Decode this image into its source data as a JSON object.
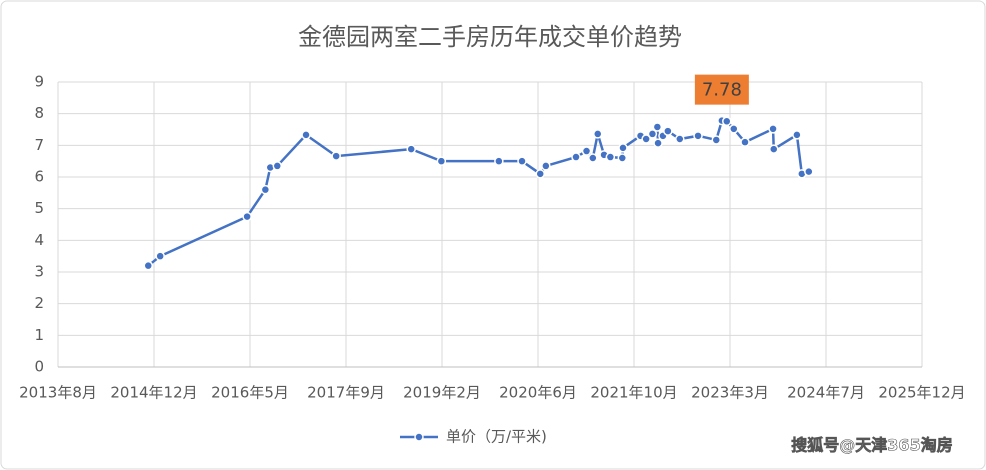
{
  "chart_data": {
    "type": "line",
    "title": "金德园两室二手房历年成交单价趋势",
    "x": [
      2014.87,
      2015.04,
      2016.28,
      2016.54,
      2016.61,
      2016.71,
      2017.12,
      2017.55,
      2018.62,
      2019.05,
      2019.87,
      2020.2,
      2020.46,
      2020.54,
      2020.97,
      2021.12,
      2021.21,
      2021.28,
      2021.37,
      2021.46,
      2021.63,
      2021.64,
      2021.89,
      2021.97,
      2022.06,
      2022.13,
      2022.14,
      2022.21,
      2022.28,
      2022.45,
      2022.71,
      2022.97,
      2023.05,
      2023.12,
      2023.22,
      2023.38,
      2023.78,
      2023.79,
      2024.12,
      2024.19,
      2024.29
    ],
    "series": [
      {
        "name": "单价（万/平米)",
        "color": "#4472c4",
        "values": [
          3.2,
          3.5,
          4.75,
          5.6,
          6.3,
          6.35,
          7.33,
          6.66,
          6.88,
          6.5,
          6.5,
          6.5,
          6.1,
          6.35,
          6.63,
          6.82,
          6.6,
          7.36,
          6.7,
          6.63,
          6.6,
          6.92,
          7.3,
          7.2,
          7.36,
          7.58,
          7.07,
          7.3,
          7.45,
          7.2,
          7.3,
          7.17,
          7.78,
          7.76,
          7.52,
          7.1,
          7.52,
          6.88,
          7.33,
          6.1,
          6.17
        ]
      }
    ],
    "highlight_index": 32,
    "highlight_color": "#ed7d31",
    "xlim": [
      2013.583,
      2025.904
    ],
    "xticks": [
      {
        "value": 2013.583,
        "label": "2013年8月"
      },
      {
        "value": 2014.952,
        "label": "2014年12月"
      },
      {
        "value": 2016.321,
        "label": "2016年5月"
      },
      {
        "value": 2017.69,
        "label": "2017年9月"
      },
      {
        "value": 2019.059,
        "label": "2019年2月"
      },
      {
        "value": 2020.428,
        "label": "2020年6月"
      },
      {
        "value": 2021.797,
        "label": "2021年10月"
      },
      {
        "value": 2023.166,
        "label": "2023年3月"
      },
      {
        "value": 2024.535,
        "label": "2024年7月"
      },
      {
        "value": 2025.904,
        "label": "2025年12月"
      }
    ],
    "ylim": [
      0,
      9
    ],
    "yticks": [
      0,
      1,
      2,
      3,
      4,
      5,
      6,
      7,
      8,
      9
    ],
    "grid": true,
    "legend": "bottom",
    "watermark": "搜狐号@天津365淘房"
  }
}
